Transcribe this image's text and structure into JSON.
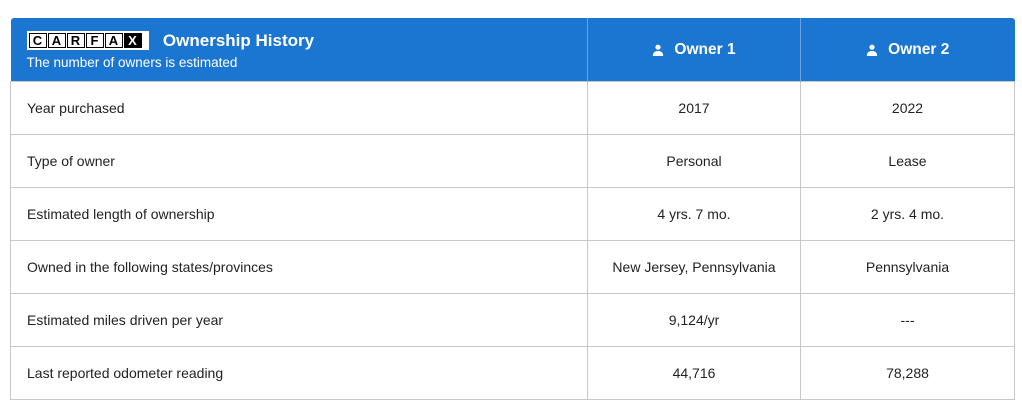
{
  "colors": {
    "accent": "#1b76d2",
    "border": "#c8c8c8"
  },
  "header": {
    "logo_letters": [
      "C",
      "A",
      "R",
      "F",
      "A",
      "X"
    ],
    "logo_text": "CARFAX",
    "logo_reg_mark": "®",
    "title": "Ownership History",
    "subtitle": "The number of owners is estimated",
    "owners": [
      {
        "icon": "person-icon",
        "label": "Owner 1"
      },
      {
        "icon": "person-icon",
        "label": "Owner 2"
      }
    ]
  },
  "rows": [
    {
      "label": "Year purchased",
      "values": [
        "2017",
        "2022"
      ]
    },
    {
      "label": "Type of owner",
      "values": [
        "Personal",
        "Lease"
      ]
    },
    {
      "label": "Estimated length of ownership",
      "values": [
        "4 yrs. 7 mo.",
        "2 yrs. 4 mo."
      ]
    },
    {
      "label": "Owned in the following states/provinces",
      "values": [
        "New Jersey, Pennsylvania",
        "Pennsylvania"
      ]
    },
    {
      "label": "Estimated miles driven per year",
      "values": [
        "9,124/yr",
        "---"
      ]
    },
    {
      "label": "Last reported odometer reading",
      "values": [
        "44,716",
        "78,288"
      ]
    }
  ]
}
